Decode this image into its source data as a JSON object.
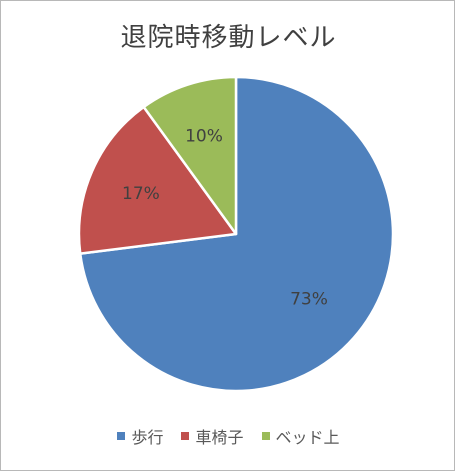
{
  "chart_data": {
    "type": "pie",
    "title": "退院時移動レベル",
    "categories": [
      "歩行",
      "車椅子",
      "ベッド上"
    ],
    "values": [
      73,
      17,
      10
    ],
    "data_labels": [
      "73%",
      "17%",
      "10%"
    ],
    "colors": [
      "#4f81bd",
      "#c0504d",
      "#9bbb59"
    ],
    "legend_position": "bottom",
    "start_angle": "top",
    "direction": "clockwise"
  }
}
